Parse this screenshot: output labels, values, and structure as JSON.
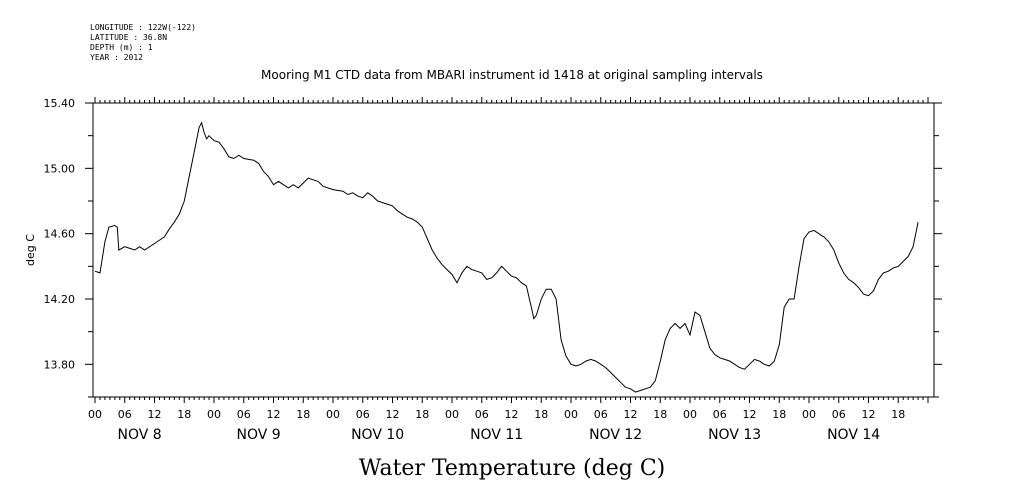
{
  "header": {
    "lines": [
      "LONGITUDE : 122W(-122)",
      "LATITUDE : 36.8N",
      "DEPTH (m) : 1",
      "YEAR : 2012"
    ]
  },
  "chart_data": {
    "type": "line",
    "title": "Mooring M1 CTD data from MBARI instrument id 1418 at original sampling intervals",
    "xlabel": "Water Temperature (deg C)",
    "ylabel": "deg C",
    "ylim": [
      13.6,
      15.4
    ],
    "yticks": [
      "13.80",
      "14.20",
      "14.60",
      "15.00",
      "15.40"
    ],
    "x_unit": "hours since NOV 8 00:00",
    "xlim": [
      0,
      168
    ],
    "hour_tick_labels": [
      "00",
      "06",
      "12",
      "18"
    ],
    "day_labels": [
      "NOV  8",
      "NOV  9",
      "NOV 10",
      "NOV 11",
      "NOV 12",
      "NOV 13",
      "NOV 14"
    ],
    "series": [
      {
        "values": [
          [
            0,
            14.37
          ],
          [
            1,
            14.36
          ],
          [
            2,
            14.55
          ],
          [
            2.8,
            14.64
          ],
          [
            4,
            14.65
          ],
          [
            4.5,
            14.64
          ],
          [
            4.8,
            14.5
          ],
          [
            6,
            14.52
          ],
          [
            8,
            14.5
          ],
          [
            9,
            14.52
          ],
          [
            10,
            14.5
          ],
          [
            12,
            14.54
          ],
          [
            14,
            14.58
          ],
          [
            15,
            14.63
          ],
          [
            16,
            14.67
          ],
          [
            17,
            14.72
          ],
          [
            18,
            14.8
          ],
          [
            19,
            14.95
          ],
          [
            20,
            15.1
          ],
          [
            21,
            15.25
          ],
          [
            21.5,
            15.28
          ],
          [
            22,
            15.22
          ],
          [
            22.5,
            15.18
          ],
          [
            23,
            15.2
          ],
          [
            24,
            15.17
          ],
          [
            25,
            15.16
          ],
          [
            26,
            15.12
          ],
          [
            27,
            15.07
          ],
          [
            28,
            15.06
          ],
          [
            29,
            15.08
          ],
          [
            30,
            15.06
          ],
          [
            32,
            15.05
          ],
          [
            33,
            15.03
          ],
          [
            34,
            14.98
          ],
          [
            35,
            14.95
          ],
          [
            36,
            14.9
          ],
          [
            37,
            14.92
          ],
          [
            38,
            14.9
          ],
          [
            39,
            14.88
          ],
          [
            40,
            14.9
          ],
          [
            41,
            14.88
          ],
          [
            42,
            14.91
          ],
          [
            43,
            14.94
          ],
          [
            44,
            14.93
          ],
          [
            45,
            14.92
          ],
          [
            46,
            14.89
          ],
          [
            48,
            14.87
          ],
          [
            50,
            14.86
          ],
          [
            51,
            14.84
          ],
          [
            52,
            14.85
          ],
          [
            53,
            14.83
          ],
          [
            54,
            14.82
          ],
          [
            55,
            14.85
          ],
          [
            56,
            14.83
          ],
          [
            57,
            14.8
          ],
          [
            58,
            14.79
          ],
          [
            60,
            14.77
          ],
          [
            61,
            14.74
          ],
          [
            62,
            14.72
          ],
          [
            63,
            14.7
          ],
          [
            64,
            14.69
          ],
          [
            65,
            14.67
          ],
          [
            66,
            14.64
          ],
          [
            67,
            14.57
          ],
          [
            68,
            14.5
          ],
          [
            69,
            14.45
          ],
          [
            70,
            14.41
          ],
          [
            71,
            14.38
          ],
          [
            72,
            14.35
          ],
          [
            73,
            14.3
          ],
          [
            74,
            14.36
          ],
          [
            75,
            14.4
          ],
          [
            76,
            14.38
          ],
          [
            77,
            14.37
          ],
          [
            78,
            14.36
          ],
          [
            79,
            14.32
          ],
          [
            80,
            14.33
          ],
          [
            81,
            14.36
          ],
          [
            82,
            14.4
          ],
          [
            83,
            14.37
          ],
          [
            84,
            14.34
          ],
          [
            85,
            14.33
          ],
          [
            86,
            14.3
          ],
          [
            87,
            14.28
          ],
          [
            88,
            14.15
          ],
          [
            88.5,
            14.08
          ],
          [
            89,
            14.1
          ],
          [
            90,
            14.2
          ],
          [
            91,
            14.26
          ],
          [
            92,
            14.26
          ],
          [
            93,
            14.2
          ],
          [
            94,
            13.95
          ],
          [
            95,
            13.85
          ],
          [
            96,
            13.8
          ],
          [
            97,
            13.79
          ],
          [
            98,
            13.8
          ],
          [
            99,
            13.82
          ],
          [
            100,
            13.83
          ],
          [
            101,
            13.82
          ],
          [
            102,
            13.8
          ],
          [
            103,
            13.78
          ],
          [
            104,
            13.75
          ],
          [
            105,
            13.72
          ],
          [
            106,
            13.69
          ],
          [
            107,
            13.66
          ],
          [
            108,
            13.65
          ],
          [
            109,
            13.63
          ],
          [
            110,
            13.64
          ],
          [
            111,
            13.65
          ],
          [
            112,
            13.66
          ],
          [
            113,
            13.7
          ],
          [
            114,
            13.82
          ],
          [
            115,
            13.95
          ],
          [
            116,
            14.02
          ],
          [
            117,
            14.05
          ],
          [
            118,
            14.02
          ],
          [
            119,
            14.05
          ],
          [
            120,
            13.98
          ],
          [
            121,
            14.12
          ],
          [
            122,
            14.1
          ],
          [
            123,
            14.0
          ],
          [
            124,
            13.9
          ],
          [
            125,
            13.86
          ],
          [
            126,
            13.84
          ],
          [
            127,
            13.83
          ],
          [
            128,
            13.82
          ],
          [
            129,
            13.8
          ],
          [
            130,
            13.78
          ],
          [
            131,
            13.77
          ],
          [
            132,
            13.8
          ],
          [
            133,
            13.83
          ],
          [
            134,
            13.82
          ],
          [
            135,
            13.8
          ],
          [
            136,
            13.79
          ],
          [
            137,
            13.82
          ],
          [
            138,
            13.92
          ],
          [
            139,
            14.15
          ],
          [
            140,
            14.2
          ],
          [
            141,
            14.2
          ],
          [
            142,
            14.4
          ],
          [
            143,
            14.57
          ],
          [
            144,
            14.61
          ],
          [
            145,
            14.62
          ],
          [
            146,
            14.6
          ],
          [
            147,
            14.58
          ],
          [
            148,
            14.55
          ],
          [
            149,
            14.5
          ],
          [
            150,
            14.42
          ],
          [
            151,
            14.36
          ],
          [
            152,
            14.32
          ],
          [
            153,
            14.3
          ],
          [
            154,
            14.27
          ],
          [
            155,
            14.23
          ],
          [
            156,
            14.22
          ],
          [
            157,
            14.25
          ],
          [
            158,
            14.32
          ],
          [
            159,
            14.36
          ],
          [
            160,
            14.37
          ],
          [
            161,
            14.39
          ],
          [
            162,
            14.4
          ],
          [
            163,
            14.43
          ],
          [
            164,
            14.46
          ],
          [
            165,
            14.52
          ],
          [
            166,
            14.67
          ]
        ]
      }
    ]
  }
}
